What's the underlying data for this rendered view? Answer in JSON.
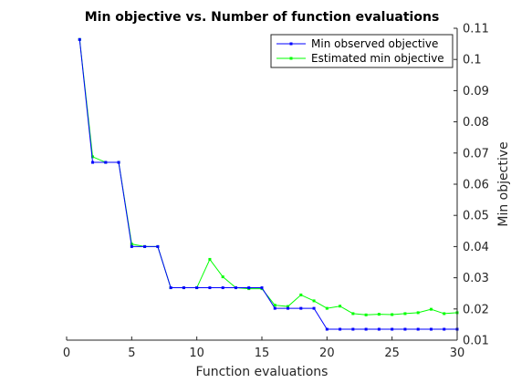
{
  "chart_data": {
    "type": "line",
    "title": "Min objective vs. Number of function evaluations",
    "xlabel": "Function evaluations",
    "ylabel": "Min objective",
    "xlim": [
      0,
      30
    ],
    "ylim": [
      0.01,
      0.11
    ],
    "xticks": [
      0,
      5,
      10,
      15,
      20,
      25,
      30
    ],
    "yticks": [
      0.01,
      0.02,
      0.03,
      0.04,
      0.05,
      0.06,
      0.07,
      0.08,
      0.09,
      0.1,
      0.11
    ],
    "y_axis_position": "right",
    "grid": false,
    "legend_position": "top-right",
    "x": [
      1,
      2,
      3,
      4,
      5,
      6,
      7,
      8,
      9,
      10,
      11,
      12,
      13,
      14,
      15,
      16,
      17,
      18,
      19,
      20,
      21,
      22,
      23,
      24,
      25,
      26,
      27,
      28,
      29,
      30
    ],
    "series": [
      {
        "name": "Min observed objective",
        "color": "#0000ff",
        "values": [
          0.1064,
          0.067,
          0.067,
          0.067,
          0.04,
          0.04,
          0.04,
          0.0268,
          0.0268,
          0.0268,
          0.0268,
          0.0268,
          0.0268,
          0.0268,
          0.0268,
          0.0202,
          0.0202,
          0.0202,
          0.0202,
          0.0135,
          0.0135,
          0.0135,
          0.0135,
          0.0135,
          0.0135,
          0.0135,
          0.0135,
          0.0135,
          0.0135,
          0.0135
        ]
      },
      {
        "name": "Estimated min objective",
        "color": "#00ff00",
        "values": [
          0.1064,
          0.0688,
          0.067,
          0.067,
          0.0408,
          0.04,
          0.04,
          0.0268,
          0.0268,
          0.0268,
          0.0359,
          0.0303,
          0.0268,
          0.0265,
          0.0265,
          0.0212,
          0.0208,
          0.0245,
          0.0226,
          0.0202,
          0.0209,
          0.0185,
          0.0181,
          0.0183,
          0.0182,
          0.0185,
          0.0188,
          0.0199,
          0.0185,
          0.0188
        ]
      }
    ]
  }
}
